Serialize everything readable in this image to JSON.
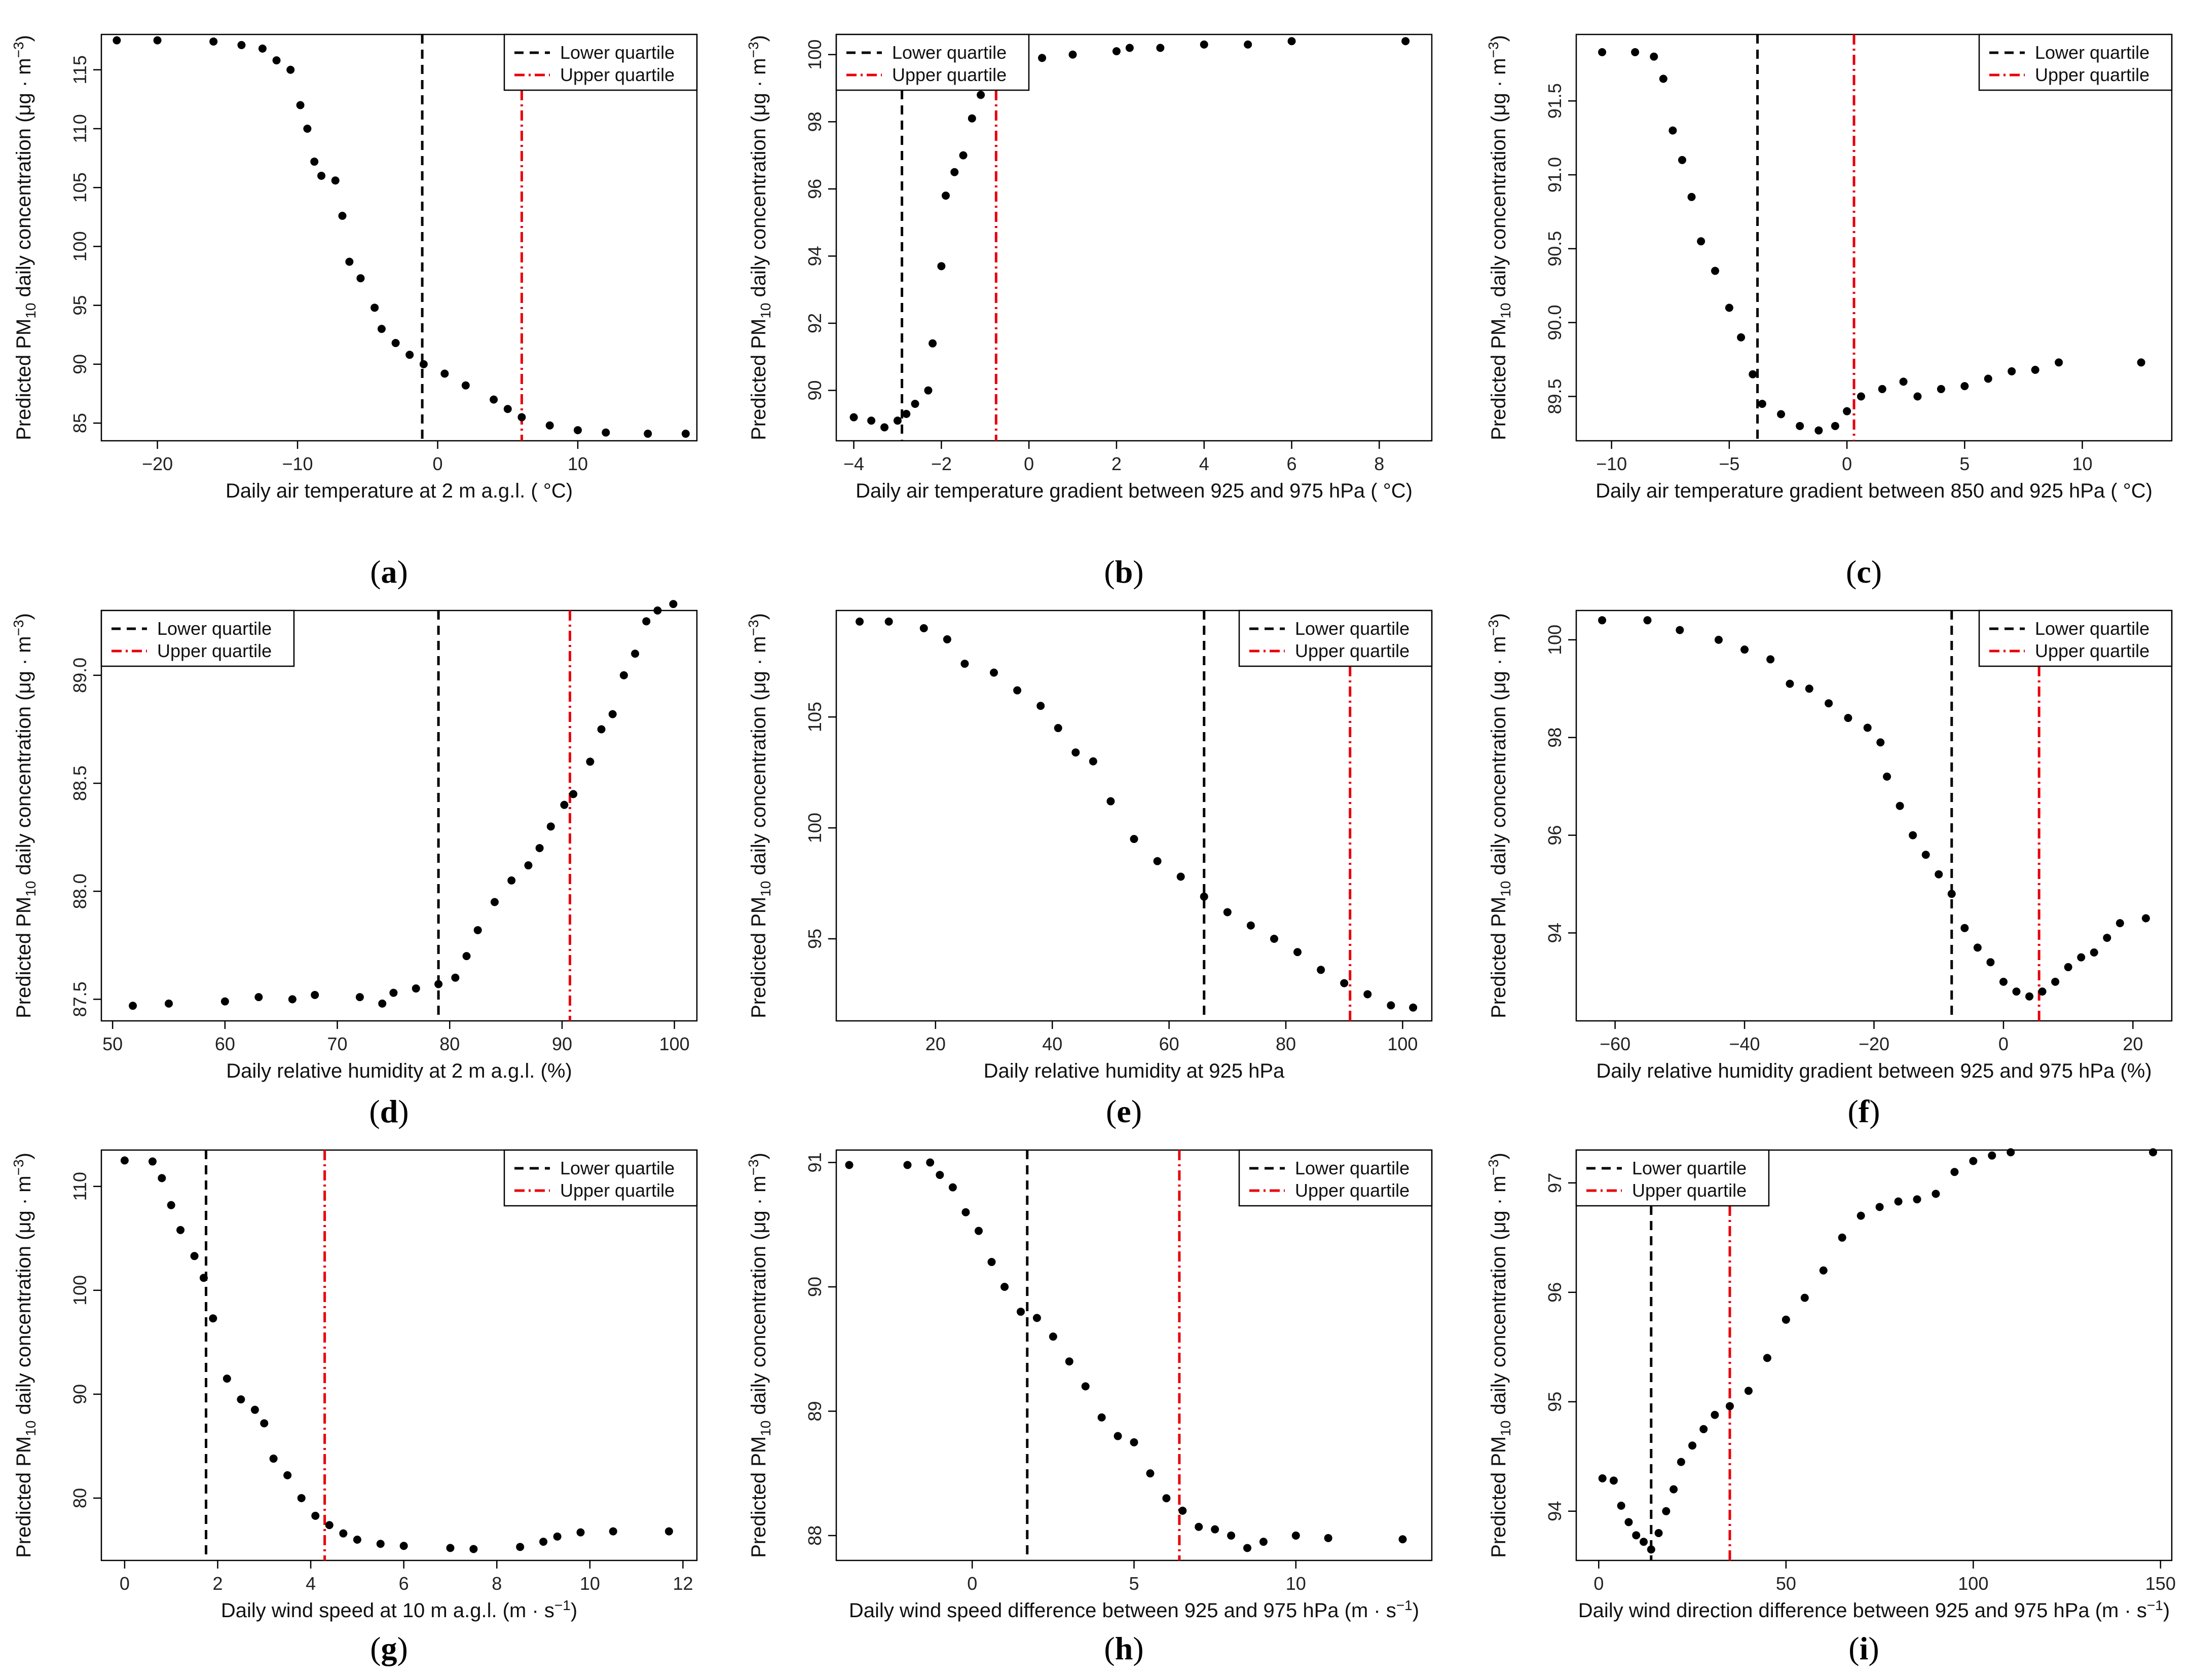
{
  "figure": {
    "background": "#ffffff",
    "marker_color": "#000000",
    "lower_color": "#000000",
    "upper_color": "#e8000b"
  },
  "chart_data": [
    {
      "id": "a",
      "type": "scatter",
      "panel_label": "a",
      "xlabel": "Daily air temperature at 2 m a.g.l. ( °C)",
      "ylabel": "Predicted PM10 daily concentration (μg · m−3)",
      "xlim": [
        -24,
        18.5
      ],
      "ylim": [
        83.5,
        118
      ],
      "xticks": [
        -20,
        -10,
        0,
        10
      ],
      "yticks": [
        85,
        90,
        95,
        100,
        105,
        110,
        115
      ],
      "legend": {
        "position": "top-right",
        "entries": [
          "Lower quartile",
          "Upper quartile"
        ]
      },
      "lower_quartile": -1.1,
      "upper_quartile": 6.0,
      "points": [
        [
          -22.9,
          117.5
        ],
        [
          -20,
          117.5
        ],
        [
          -16,
          117.4
        ],
        [
          -14,
          117.1
        ],
        [
          -12.5,
          116.8
        ],
        [
          -11.5,
          115.8
        ],
        [
          -10.5,
          115.0
        ],
        [
          -9.8,
          112.0
        ],
        [
          -9.3,
          110.0
        ],
        [
          -8.8,
          107.2
        ],
        [
          -8.3,
          106.0
        ],
        [
          -7.3,
          105.6
        ],
        [
          -6.8,
          102.6
        ],
        [
          -6.3,
          98.7
        ],
        [
          -5.5,
          97.3
        ],
        [
          -4.5,
          94.8
        ],
        [
          -4.0,
          93.0
        ],
        [
          -3.0,
          91.8
        ],
        [
          -2.0,
          90.8
        ],
        [
          -1.0,
          90.0
        ],
        [
          0.5,
          89.2
        ],
        [
          2.0,
          88.2
        ],
        [
          4.0,
          87.0
        ],
        [
          5.0,
          86.2
        ],
        [
          6.0,
          85.5
        ],
        [
          8.0,
          84.8
        ],
        [
          10.0,
          84.4
        ],
        [
          12.0,
          84.2
        ],
        [
          15.0,
          84.1
        ],
        [
          17.7,
          84.1
        ]
      ]
    },
    {
      "id": "b",
      "type": "scatter",
      "panel_label": "b",
      "xlabel": "Daily air temperature gradient between 925 and 975 hPa ( °C)",
      "ylabel": "Predicted PM10 daily concentration (μg · m−3)",
      "xlim": [
        -4.4,
        9.2
      ],
      "ylim": [
        88.5,
        100.6
      ],
      "xticks": [
        -4,
        -2,
        0,
        2,
        4,
        6,
        8
      ],
      "yticks": [
        90,
        92,
        94,
        96,
        98,
        100
      ],
      "legend": {
        "position": "top-left",
        "entries": [
          "Lower quartile",
          "Upper quartile"
        ]
      },
      "lower_quartile": -2.9,
      "upper_quartile": -0.75,
      "points": [
        [
          -4.0,
          89.2
        ],
        [
          -3.6,
          89.1
        ],
        [
          -3.3,
          88.9
        ],
        [
          -3.0,
          89.1
        ],
        [
          -2.8,
          89.3
        ],
        [
          -2.6,
          89.6
        ],
        [
          -2.3,
          90.0
        ],
        [
          -2.2,
          91.4
        ],
        [
          -2.0,
          93.7
        ],
        [
          -1.9,
          95.8
        ],
        [
          -1.7,
          96.5
        ],
        [
          -1.5,
          97.0
        ],
        [
          -1.3,
          98.1
        ],
        [
          -1.1,
          98.8
        ],
        [
          -0.9,
          99.2
        ],
        [
          -0.6,
          99.4
        ],
        [
          -0.2,
          99.6
        ],
        [
          0.3,
          99.9
        ],
        [
          1.0,
          100.0
        ],
        [
          2.0,
          100.1
        ],
        [
          2.3,
          100.2
        ],
        [
          3.0,
          100.2
        ],
        [
          4.0,
          100.3
        ],
        [
          5.0,
          100.3
        ],
        [
          6.0,
          100.4
        ],
        [
          8.6,
          100.4
        ]
      ]
    },
    {
      "id": "c",
      "type": "scatter",
      "panel_label": "c",
      "xlabel": "Daily air temperature gradient between 850 and 925 hPa ( °C)",
      "ylabel": "Predicted PM10 daily concentration (μg · m−3)",
      "xlim": [
        -11.5,
        13.8
      ],
      "ylim": [
        89.2,
        91.95
      ],
      "xticks": [
        -10,
        -5,
        0,
        5,
        10
      ],
      "yticks": [
        89.5,
        90.0,
        90.5,
        91.0,
        91.5
      ],
      "legend": {
        "position": "top-right",
        "entries": [
          "Lower quartile",
          "Upper quartile"
        ]
      },
      "lower_quartile": -3.8,
      "upper_quartile": 0.3,
      "points": [
        [
          -10.4,
          91.83
        ],
        [
          -9.0,
          91.83
        ],
        [
          -8.2,
          91.8
        ],
        [
          -7.8,
          91.65
        ],
        [
          -7.4,
          91.3
        ],
        [
          -7.0,
          91.1
        ],
        [
          -6.6,
          90.85
        ],
        [
          -6.2,
          90.55
        ],
        [
          -5.6,
          90.35
        ],
        [
          -5.0,
          90.1
        ],
        [
          -4.5,
          89.9
        ],
        [
          -4.0,
          89.65
        ],
        [
          -3.6,
          89.45
        ],
        [
          -2.8,
          89.38
        ],
        [
          -2.0,
          89.3
        ],
        [
          -1.2,
          89.27
        ],
        [
          -0.5,
          89.3
        ],
        [
          0.0,
          89.4
        ],
        [
          0.6,
          89.5
        ],
        [
          1.5,
          89.55
        ],
        [
          2.4,
          89.6
        ],
        [
          3.0,
          89.5
        ],
        [
          4.0,
          89.55
        ],
        [
          5.0,
          89.57
        ],
        [
          6.0,
          89.62
        ],
        [
          7.0,
          89.67
        ],
        [
          8.0,
          89.68
        ],
        [
          9.0,
          89.73
        ],
        [
          12.5,
          89.73
        ]
      ]
    },
    {
      "id": "d",
      "type": "scatter",
      "panel_label": "d",
      "xlabel": "Daily relative humidity at 2 m a.g.l. (%)",
      "ylabel": "Predicted PM10 daily concentration (μg · m−3)",
      "xlim": [
        49,
        102
      ],
      "ylim": [
        87.4,
        89.3
      ],
      "xticks": [
        50,
        60,
        70,
        80,
        90,
        100
      ],
      "yticks": [
        87.5,
        88.0,
        88.5,
        89.0
      ],
      "legend": {
        "position": "top-left",
        "entries": [
          "Lower quartile",
          "Upper quartile"
        ]
      },
      "lower_quartile": 79.0,
      "upper_quartile": 90.7,
      "points": [
        [
          51.8,
          87.47
        ],
        [
          55,
          87.48
        ],
        [
          60,
          87.49
        ],
        [
          63,
          87.51
        ],
        [
          66,
          87.5
        ],
        [
          68,
          87.52
        ],
        [
          72,
          87.51
        ],
        [
          74,
          87.48
        ],
        [
          75,
          87.53
        ],
        [
          77,
          87.55
        ],
        [
          79,
          87.57
        ],
        [
          80.5,
          87.6
        ],
        [
          81.5,
          87.7
        ],
        [
          82.5,
          87.82
        ],
        [
          84,
          87.95
        ],
        [
          85.5,
          88.05
        ],
        [
          87,
          88.12
        ],
        [
          88,
          88.2
        ],
        [
          89,
          88.3
        ],
        [
          90.2,
          88.4
        ],
        [
          91,
          88.45
        ],
        [
          92.5,
          88.6
        ],
        [
          93.5,
          88.75
        ],
        [
          94.5,
          88.82
        ],
        [
          95.5,
          89.0
        ],
        [
          96.5,
          89.1
        ],
        [
          97.5,
          89.25
        ],
        [
          98.5,
          89.3
        ],
        [
          99.9,
          89.33
        ]
      ]
    },
    {
      "id": "e",
      "type": "scatter",
      "panel_label": "e",
      "xlabel": "Daily relative humidity at 925 hPa",
      "ylabel": "Predicted PM10 daily concentration (μg · m−3)",
      "xlim": [
        3,
        105
      ],
      "ylim": [
        91.3,
        109.8
      ],
      "xticks": [
        20,
        40,
        60,
        80,
        100
      ],
      "yticks": [
        95,
        100,
        105
      ],
      "legend": {
        "position": "top-right",
        "entries": [
          "Lower quartile",
          "Upper quartile"
        ]
      },
      "lower_quartile": 66.0,
      "upper_quartile": 91.0,
      "points": [
        [
          7,
          109.3
        ],
        [
          12,
          109.3
        ],
        [
          18,
          109.0
        ],
        [
          22,
          108.5
        ],
        [
          25,
          107.4
        ],
        [
          30,
          107.0
        ],
        [
          34,
          106.2
        ],
        [
          38,
          105.5
        ],
        [
          41,
          104.5
        ],
        [
          44,
          103.4
        ],
        [
          47,
          103.0
        ],
        [
          50,
          101.2
        ],
        [
          54,
          99.5
        ],
        [
          58,
          98.5
        ],
        [
          62,
          97.8
        ],
        [
          66,
          96.9
        ],
        [
          70,
          96.2
        ],
        [
          74,
          95.6
        ],
        [
          78,
          95.0
        ],
        [
          82,
          94.4
        ],
        [
          86,
          93.6
        ],
        [
          90,
          93.0
        ],
        [
          94,
          92.5
        ],
        [
          98,
          92.0
        ],
        [
          101.8,
          91.9
        ]
      ]
    },
    {
      "id": "f",
      "type": "scatter",
      "panel_label": "f",
      "xlabel": "Daily relative humidity gradient between 925 and 975 hPa (%)",
      "ylabel": "Predicted PM10 daily concentration (μg · m−3)",
      "xlim": [
        -66,
        26
      ],
      "ylim": [
        92.2,
        100.6
      ],
      "xticks": [
        -60,
        -40,
        -20,
        0,
        20
      ],
      "yticks": [
        94,
        96,
        98,
        100
      ],
      "legend": {
        "position": "top-right",
        "entries": [
          "Lower quartile",
          "Upper quartile"
        ]
      },
      "lower_quartile": -8.0,
      "upper_quartile": 5.5,
      "points": [
        [
          -62,
          100.4
        ],
        [
          -55,
          100.4
        ],
        [
          -50,
          100.2
        ],
        [
          -44,
          100.0
        ],
        [
          -40,
          99.8
        ],
        [
          -36,
          99.6
        ],
        [
          -33,
          99.1
        ],
        [
          -30,
          99.0
        ],
        [
          -27,
          98.7
        ],
        [
          -24,
          98.4
        ],
        [
          -21,
          98.2
        ],
        [
          -19,
          97.9
        ],
        [
          -18,
          97.2
        ],
        [
          -16,
          96.6
        ],
        [
          -14,
          96.0
        ],
        [
          -12,
          95.6
        ],
        [
          -10,
          95.2
        ],
        [
          -8,
          94.8
        ],
        [
          -6,
          94.1
        ],
        [
          -4,
          93.7
        ],
        [
          -2,
          93.4
        ],
        [
          0,
          93.0
        ],
        [
          2,
          92.8
        ],
        [
          4,
          92.7
        ],
        [
          6,
          92.8
        ],
        [
          8,
          93.0
        ],
        [
          10,
          93.3
        ],
        [
          12,
          93.5
        ],
        [
          14,
          93.6
        ],
        [
          16,
          93.9
        ],
        [
          18,
          94.2
        ],
        [
          22,
          94.3
        ]
      ]
    },
    {
      "id": "g",
      "type": "scatter",
      "panel_label": "g",
      "xlabel": "Daily wind speed at 10 m a.g.l. (m · s−1)",
      "ylabel": "Predicted PM10 daily concentration (μg · m−3)",
      "xlim": [
        -0.5,
        12.3
      ],
      "ylim": [
        74,
        113.5
      ],
      "xticks": [
        0,
        2,
        4,
        6,
        8,
        10,
        12
      ],
      "yticks": [
        80,
        90,
        100,
        110
      ],
      "legend": {
        "position": "top-right",
        "entries": [
          "Lower quartile",
          "Upper quartile"
        ]
      },
      "lower_quartile": 1.75,
      "upper_quartile": 4.3,
      "points": [
        [
          0.0,
          112.5
        ],
        [
          0.6,
          112.4
        ],
        [
          0.8,
          110.8
        ],
        [
          1.0,
          108.2
        ],
        [
          1.2,
          105.8
        ],
        [
          1.5,
          103.3
        ],
        [
          1.7,
          101.2
        ],
        [
          1.9,
          97.3
        ],
        [
          2.2,
          91.5
        ],
        [
          2.5,
          89.5
        ],
        [
          2.8,
          88.5
        ],
        [
          3.0,
          87.2
        ],
        [
          3.2,
          83.8
        ],
        [
          3.5,
          82.2
        ],
        [
          3.8,
          80.0
        ],
        [
          4.1,
          78.3
        ],
        [
          4.4,
          77.4
        ],
        [
          4.7,
          76.6
        ],
        [
          5.0,
          76.0
        ],
        [
          5.5,
          75.6
        ],
        [
          6.0,
          75.4
        ],
        [
          7.0,
          75.2
        ],
        [
          7.5,
          75.1
        ],
        [
          8.5,
          75.3
        ],
        [
          9.0,
          75.8
        ],
        [
          9.3,
          76.3
        ],
        [
          9.8,
          76.7
        ],
        [
          10.5,
          76.8
        ],
        [
          11.7,
          76.8
        ]
      ]
    },
    {
      "id": "h",
      "type": "scatter",
      "panel_label": "h",
      "xlabel": "Daily wind speed difference between 925 and 975 hPa (m · s−1)",
      "ylabel": "Predicted PM10 daily concentration (μg · m−3)",
      "xlim": [
        -4.2,
        14.2
      ],
      "ylim": [
        87.8,
        91.1
      ],
      "xticks": [
        0,
        5,
        10
      ],
      "yticks": [
        88.0,
        89.0,
        90.0,
        91.0
      ],
      "legend": {
        "position": "top-right",
        "entries": [
          "Lower quartile",
          "Upper quartile"
        ]
      },
      "lower_quartile": 1.7,
      "upper_quartile": 6.4,
      "points": [
        [
          -3.8,
          90.98
        ],
        [
          -2,
          90.98
        ],
        [
          -1.3,
          91.0
        ],
        [
          -1.0,
          90.9
        ],
        [
          -0.6,
          90.8
        ],
        [
          -0.2,
          90.6
        ],
        [
          0.2,
          90.45
        ],
        [
          0.6,
          90.2
        ],
        [
          1.0,
          90.0
        ],
        [
          1.5,
          89.8
        ],
        [
          2.0,
          89.75
        ],
        [
          2.5,
          89.6
        ],
        [
          3.0,
          89.4
        ],
        [
          3.5,
          89.2
        ],
        [
          4.0,
          88.95
        ],
        [
          4.5,
          88.8
        ],
        [
          5.0,
          88.75
        ],
        [
          5.5,
          88.5
        ],
        [
          6.0,
          88.3
        ],
        [
          6.5,
          88.2
        ],
        [
          7.0,
          88.07
        ],
        [
          7.5,
          88.05
        ],
        [
          8.0,
          88.0
        ],
        [
          8.5,
          87.9
        ],
        [
          9.0,
          87.95
        ],
        [
          10.0,
          88.0
        ],
        [
          11.0,
          87.98
        ],
        [
          13.3,
          87.97
        ]
      ]
    },
    {
      "id": "i",
      "type": "scatter",
      "panel_label": "i",
      "xlabel": "Daily wind direction difference between 925 and 975 hPa (m · s−1)",
      "ylabel": "Predicted PM10 daily concentration (μg · m−3)",
      "xlim": [
        -6,
        153
      ],
      "ylim": [
        93.55,
        97.3
      ],
      "xticks": [
        0,
        50,
        100,
        150
      ],
      "yticks": [
        94,
        95,
        96,
        97
      ],
      "legend": {
        "position": "top-left",
        "entries": [
          "Lower quartile",
          "Upper quartile"
        ]
      },
      "lower_quartile": 14.0,
      "upper_quartile": 35.0,
      "points": [
        [
          1,
          94.3
        ],
        [
          4,
          94.28
        ],
        [
          6,
          94.05
        ],
        [
          8,
          93.9
        ],
        [
          10,
          93.78
        ],
        [
          12,
          93.72
        ],
        [
          14,
          93.65
        ],
        [
          16,
          93.8
        ],
        [
          18,
          94.0
        ],
        [
          20,
          94.2
        ],
        [
          22,
          94.45
        ],
        [
          25,
          94.6
        ],
        [
          28,
          94.75
        ],
        [
          31,
          94.88
        ],
        [
          35,
          94.96
        ],
        [
          40,
          95.1
        ],
        [
          45,
          95.4
        ],
        [
          50,
          95.75
        ],
        [
          55,
          95.95
        ],
        [
          60,
          96.2
        ],
        [
          65,
          96.5
        ],
        [
          70,
          96.7
        ],
        [
          75,
          96.78
        ],
        [
          80,
          96.83
        ],
        [
          85,
          96.85
        ],
        [
          90,
          96.9
        ],
        [
          95,
          97.1
        ],
        [
          100,
          97.2
        ],
        [
          105,
          97.25
        ],
        [
          110,
          97.28
        ],
        [
          148,
          97.28
        ]
      ]
    }
  ]
}
